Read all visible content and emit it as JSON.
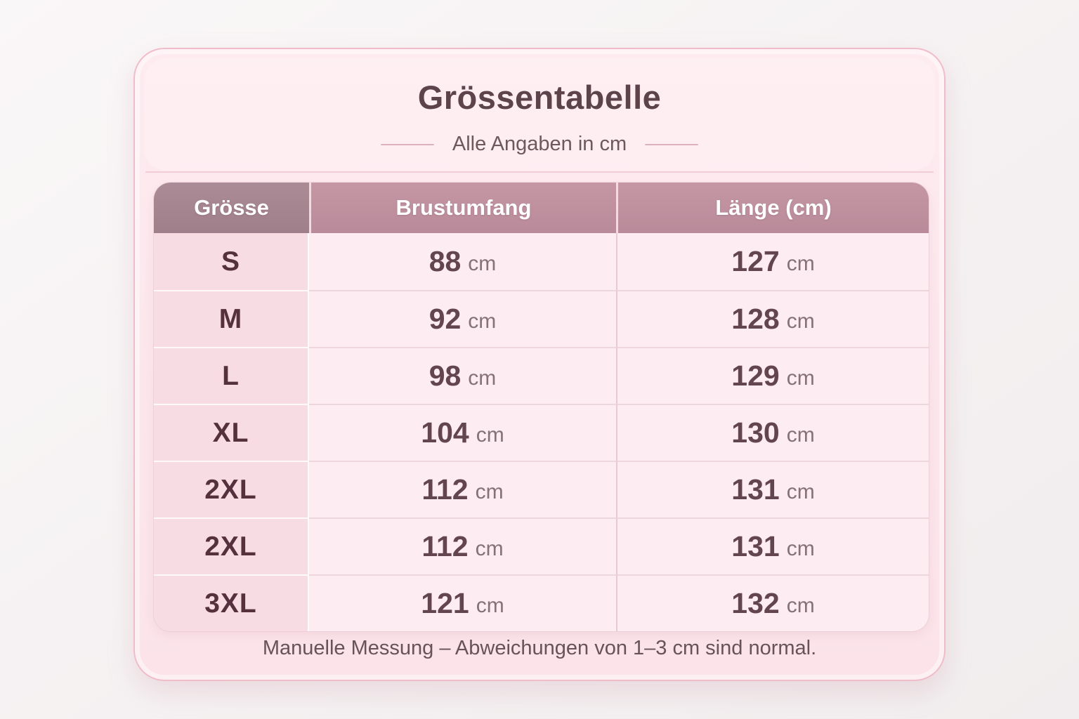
{
  "title": "Grössentabelle",
  "subtitle": "Alle Angaben in cm",
  "footnote": "Manuelle Messung – Abweichungen von 1–3 cm sind normal.",
  "table": {
    "headers": [
      "Grösse",
      "Brustumfang",
      "Länge (cm)"
    ],
    "unit_suffix": "cm",
    "rows": [
      {
        "size": "S",
        "chest": "88",
        "length": "127"
      },
      {
        "size": "M",
        "chest": "92",
        "length": "128"
      },
      {
        "size": "L",
        "chest": "98",
        "length": "129"
      },
      {
        "size": "XL",
        "chest": "104",
        "length": "130"
      },
      {
        "size": "2XL",
        "chest": "112",
        "length": "131"
      },
      {
        "size": "2XL",
        "chest": "112",
        "length": "131"
      },
      {
        "size": "3XL",
        "chest": "121",
        "length": "132"
      }
    ]
  },
  "chart_data": {
    "type": "table",
    "title": "Grössentabelle",
    "subtitle": "Alle Angaben in cm",
    "columns": [
      "Grösse",
      "Brustumfang",
      "Länge (cm)"
    ],
    "rows": [
      [
        "S",
        88,
        127
      ],
      [
        "M",
        92,
        128
      ],
      [
        "L",
        98,
        129
      ],
      [
        "XL",
        104,
        130
      ],
      [
        "2XL",
        112,
        131
      ],
      [
        "2XL",
        112,
        131
      ],
      [
        "3XL",
        121,
        132
      ]
    ],
    "units": "cm",
    "note": "Manuelle Messung – Abweichungen von 1–3 cm sind normal."
  },
  "colors": {
    "card_background": "#fce6ec",
    "card_border": "#f1bcc9",
    "header_background": "#bf91a0",
    "header_first_background": "#a58490",
    "header_text": "#ffffff",
    "size_column_background": "#f8dce4",
    "value_column_background": "#fdecf1",
    "title_text": "#5d444c",
    "size_text": "#55313d",
    "value_text": "#63454f",
    "unit_text": "#857177"
  }
}
